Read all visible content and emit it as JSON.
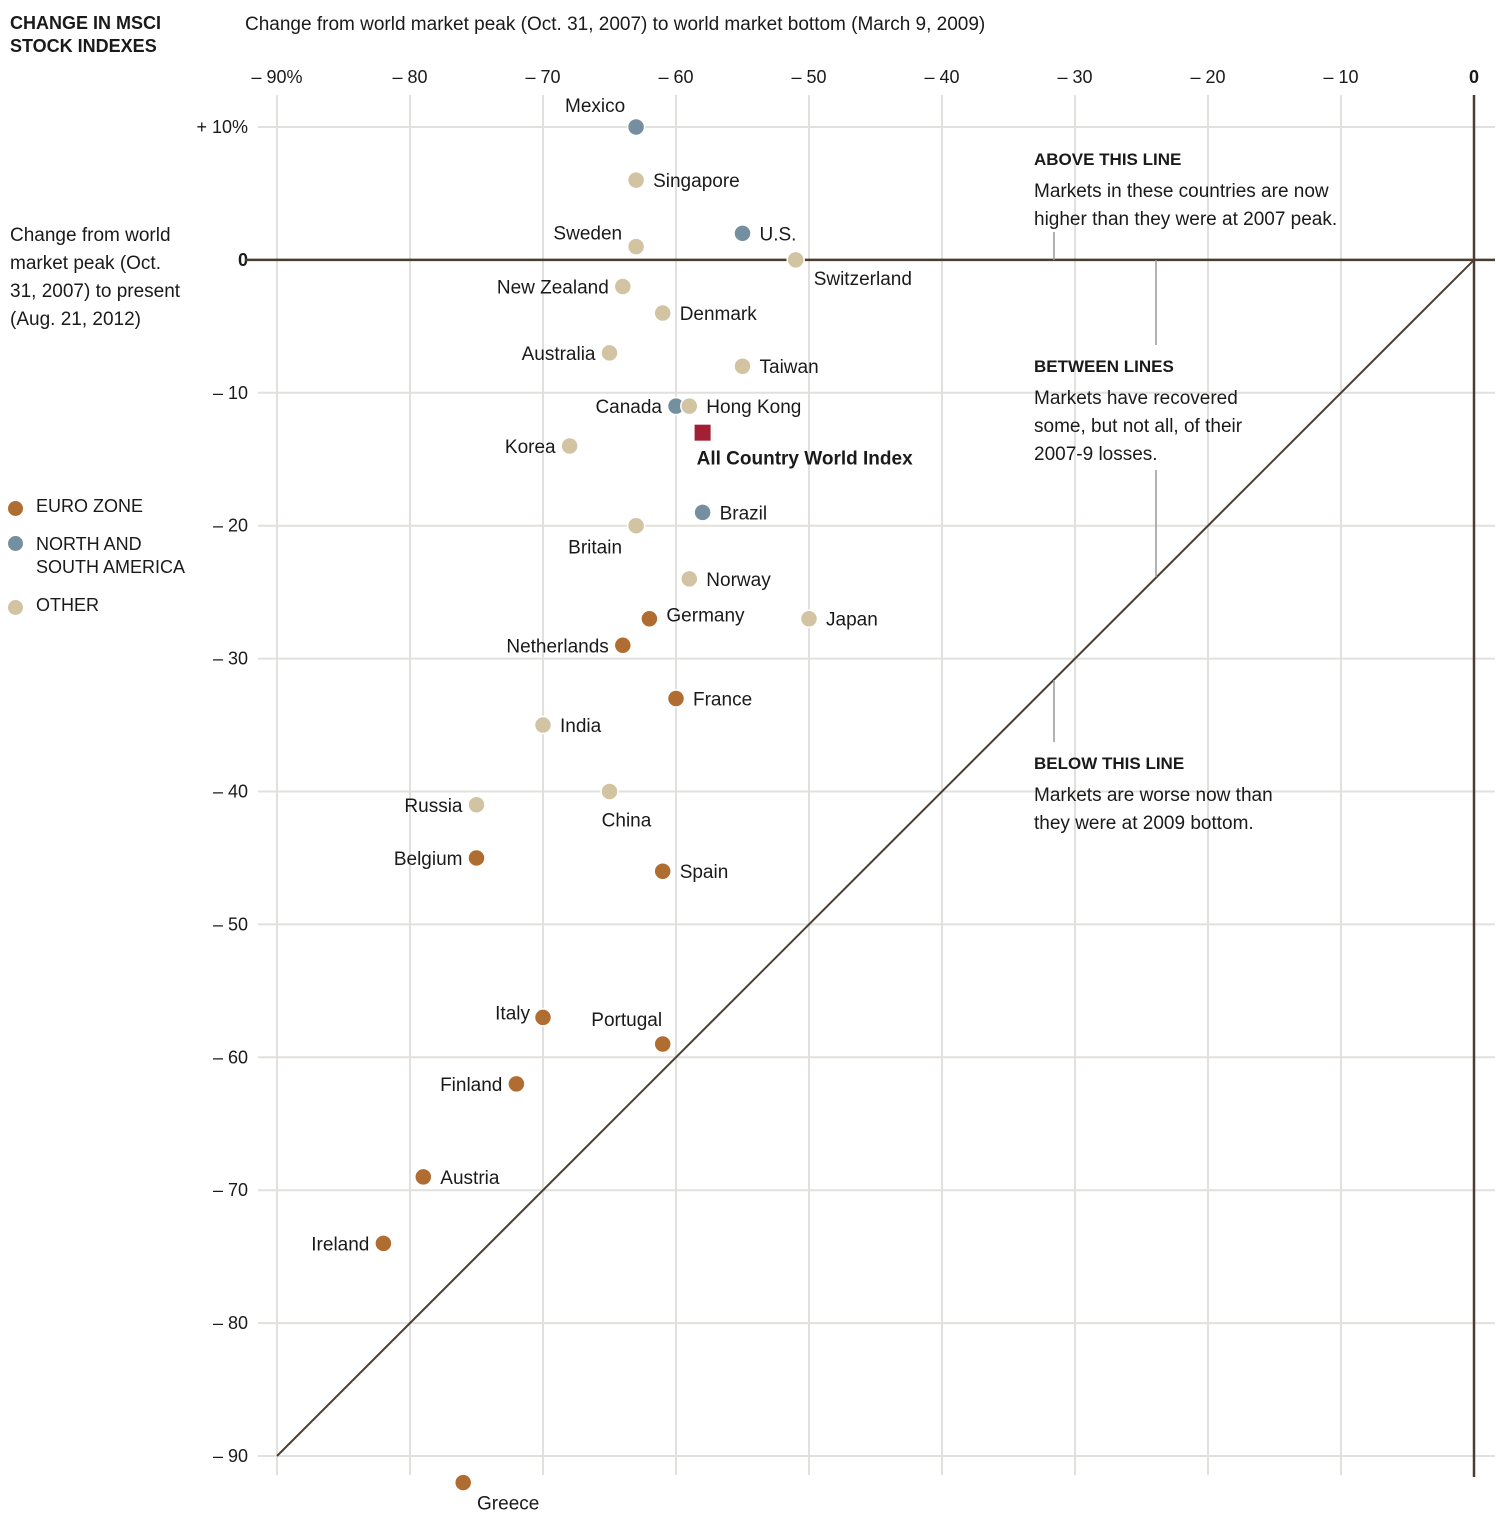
{
  "header": {
    "title": "CHANGE IN MSCI STOCK INDEXES"
  },
  "legend": [
    {
      "label": "EURO ZONE",
      "color": "#b06d32"
    },
    {
      "label": "NORTH AND SOUTH AMERICA",
      "color": "#7490a0"
    },
    {
      "label": "OTHER",
      "color": "#d2c4a2"
    }
  ],
  "annotations": [
    {
      "heading": "ABOVE THIS LINE",
      "text": "Markets in these countries are now higher than they were at 2007 peak."
    },
    {
      "heading": "BETWEEN LINES",
      "text": "Markets have recovered some, but not all, of their 2007-9 losses."
    },
    {
      "heading": "BELOW THIS LINE",
      "text": "Markets are worse now than they were at 2009 bottom."
    }
  ],
  "chart_data": {
    "type": "scatter",
    "title": "CHANGE IN MSCI STOCK INDEXES",
    "xlabel": "Change from world market peak (Oct. 31, 2007) to world market bottom (March 9, 2009)",
    "ylabel": "Change from world market peak (Oct. 31, 2007) to present (Aug. 21, 2012)",
    "xlim": [
      -90,
      0
    ],
    "ylim": [
      -90,
      10
    ],
    "x_ticks": [
      "– 90%",
      "– 80",
      "– 70",
      "– 60",
      "– 50",
      "– 40",
      "– 30",
      "– 20",
      "– 10",
      "0"
    ],
    "x_tick_values": [
      -90,
      -80,
      -70,
      -60,
      -50,
      -40,
      -30,
      -20,
      -10,
      0
    ],
    "y_ticks": [
      "+ 10%",
      "0",
      "– 10",
      "– 20",
      "– 30",
      "– 40",
      "– 50",
      "– 60",
      "– 70",
      "– 80",
      "– 90"
    ],
    "y_tick_values": [
      10,
      0,
      -10,
      -20,
      -30,
      -40,
      -50,
      -60,
      -70,
      -80,
      -90
    ],
    "grid": true,
    "reference_lines": [
      "y = 0",
      "y = x"
    ],
    "legend_position": "left",
    "index_color": "#a31f34",
    "points": [
      {
        "name": "Mexico",
        "x": -63,
        "y": 10,
        "group": 1
      },
      {
        "name": "Singapore",
        "x": -63,
        "y": 6,
        "group": 2
      },
      {
        "name": "Sweden",
        "x": -63,
        "y": 1,
        "group": 2
      },
      {
        "name": "U.S.",
        "x": -55,
        "y": 2,
        "group": 1
      },
      {
        "name": "Switzerland",
        "x": -51,
        "y": 0,
        "group": 2
      },
      {
        "name": "New Zealand",
        "x": -64,
        "y": -2,
        "group": 2
      },
      {
        "name": "Denmark",
        "x": -61,
        "y": -4,
        "group": 2
      },
      {
        "name": "Australia",
        "x": -65,
        "y": -7,
        "group": 2
      },
      {
        "name": "Taiwan",
        "x": -55,
        "y": -8,
        "group": 2
      },
      {
        "name": "Canada",
        "x": -60,
        "y": -11,
        "group": 1
      },
      {
        "name": "Hong Kong",
        "x": -59,
        "y": -11,
        "group": 2
      },
      {
        "name": "All Country World Index",
        "x": -58,
        "y": -13,
        "group": 3
      },
      {
        "name": "Korea",
        "x": -68,
        "y": -14,
        "group": 2
      },
      {
        "name": "Brazil",
        "x": -58,
        "y": -19,
        "group": 1
      },
      {
        "name": "Britain",
        "x": -63,
        "y": -20,
        "group": 2
      },
      {
        "name": "Norway",
        "x": -59,
        "y": -24,
        "group": 2
      },
      {
        "name": "Germany",
        "x": -62,
        "y": -27,
        "group": 0
      },
      {
        "name": "Japan",
        "x": -50,
        "y": -27,
        "group": 2
      },
      {
        "name": "Netherlands",
        "x": -64,
        "y": -29,
        "group": 0
      },
      {
        "name": "France",
        "x": -60,
        "y": -33,
        "group": 0
      },
      {
        "name": "India",
        "x": -70,
        "y": -35,
        "group": 2
      },
      {
        "name": "China",
        "x": -65,
        "y": -40,
        "group": 2
      },
      {
        "name": "Russia",
        "x": -75,
        "y": -41,
        "group": 2
      },
      {
        "name": "Belgium",
        "x": -75,
        "y": -45,
        "group": 0
      },
      {
        "name": "Spain",
        "x": -61,
        "y": -46,
        "group": 0
      },
      {
        "name": "Italy",
        "x": -70,
        "y": -57,
        "group": 0
      },
      {
        "name": "Portugal",
        "x": -61,
        "y": -59,
        "group": 0
      },
      {
        "name": "Finland",
        "x": -72,
        "y": -62,
        "group": 0
      },
      {
        "name": "Austria",
        "x": -79,
        "y": -69,
        "group": 0
      },
      {
        "name": "Ireland",
        "x": -82,
        "y": -74,
        "group": 0
      },
      {
        "name": "Greece",
        "x": -76,
        "y": -92,
        "group": 0
      }
    ]
  }
}
